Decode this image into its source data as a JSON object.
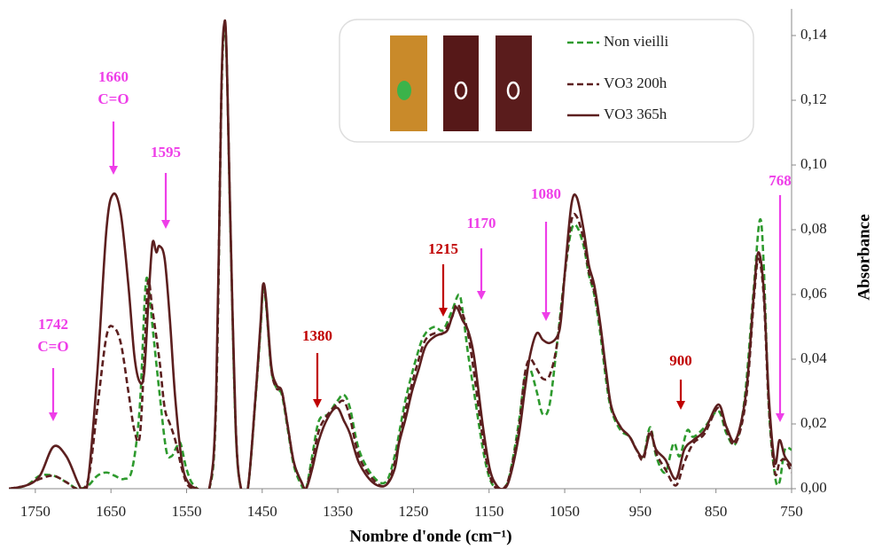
{
  "chart_data": {
    "type": "line",
    "xlabel": "Nombre d'onde (cm⁻¹)",
    "ylabel": "Absorbance",
    "xlim": [
      1785,
      750
    ],
    "xticks": [
      1750,
      1650,
      1550,
      1450,
      1350,
      1250,
      1150,
      1050,
      950,
      850,
      750
    ],
    "ylim": [
      0,
      0.147
    ],
    "yticks": [
      {
        "value": 0,
        "label": "0,00"
      },
      {
        "value": 0.02,
        "label": "0,02"
      },
      {
        "value": 0.04,
        "label": "0,04"
      },
      {
        "value": 0.06,
        "label": "0,06"
      },
      {
        "value": 0.08,
        "label": "0,08"
      },
      {
        "value": 0.1,
        "label": "0,10"
      },
      {
        "value": 0.12,
        "label": "0,12"
      },
      {
        "value": 0.14,
        "label": "0,14"
      }
    ],
    "series": [
      {
        "name": "Non vieilli",
        "color": "#2e9a2e",
        "style": "dashed",
        "x": [
          1785,
          1762,
          1744,
          1726,
          1709,
          1694,
          1680,
          1668,
          1656,
          1645,
          1633,
          1622,
          1612,
          1605,
          1601,
          1595,
          1586,
          1577,
          1570,
          1563,
          1558,
          1550,
          1540,
          1520,
          1511,
          1504,
          1500,
          1497,
          1492,
          1485,
          1478,
          1469,
          1459,
          1452,
          1449,
          1445,
          1438,
          1431,
          1424,
          1416,
          1408,
          1398,
          1392,
          1384,
          1375,
          1363,
          1351,
          1342,
          1334,
          1322,
          1304,
          1287,
          1275,
          1260,
          1243,
          1234,
          1222,
          1211,
          1199,
          1190,
          1185,
          1178,
          1170,
          1158,
          1149,
          1140,
          1131,
          1123,
          1111,
          1103,
          1096,
          1087,
          1079,
          1070,
          1060,
          1049,
          1041,
          1034,
          1025,
          1018,
          1011,
          1003,
          995,
          988,
          976,
          964,
          955,
          946,
          937,
          929,
          917,
          906,
          898,
          888,
          880,
          865,
          847,
          836,
          824,
          812,
          800,
          792,
          787,
          780,
          772,
          766,
          759,
          750
        ],
        "values": [
          0,
          0.001,
          0.004,
          0.004,
          0.002,
          0,
          0.001,
          0.004,
          0.005,
          0.004,
          0.003,
          0.006,
          0.025,
          0.06,
          0.064,
          0.05,
          0.03,
          0.012,
          0.01,
          0.013,
          0.014,
          0.006,
          0.001,
          0,
          0.026,
          0.12,
          0.142,
          0.132,
          0.08,
          0.018,
          0,
          0,
          0.027,
          0.05,
          0.061,
          0.057,
          0.037,
          0.031,
          0.029,
          0.018,
          0.007,
          0.001,
          0,
          0.01,
          0.021,
          0.023,
          0.027,
          0.029,
          0.025,
          0.012,
          0.004,
          0.002,
          0.01,
          0.028,
          0.043,
          0.048,
          0.05,
          0.049,
          0.055,
          0.06,
          0.055,
          0.042,
          0.03,
          0.012,
          0.003,
          0,
          0,
          0.004,
          0.02,
          0.034,
          0.037,
          0.03,
          0.023,
          0.026,
          0.045,
          0.068,
          0.08,
          0.081,
          0.075,
          0.066,
          0.06,
          0.048,
          0.033,
          0.024,
          0.018,
          0.016,
          0.012,
          0.01,
          0.019,
          0.01,
          0.005,
          0.014,
          0.01,
          0.018,
          0.016,
          0.019,
          0.024,
          0.017,
          0.014,
          0.028,
          0.062,
          0.083,
          0.07,
          0.025,
          0.004,
          0.002,
          0.012,
          0.012
        ]
      },
      {
        "name": "VO3 200h",
        "color": "#5c1f1f",
        "style": "dashed",
        "x": [
          1785,
          1762,
          1744,
          1726,
          1709,
          1694,
          1680,
          1668,
          1656,
          1647,
          1637,
          1627,
          1619,
          1612,
          1606,
          1601,
          1595,
          1586,
          1579,
          1572,
          1565,
          1556,
          1548,
          1536,
          1520,
          1511,
          1504,
          1500,
          1497,
          1492,
          1485,
          1478,
          1469,
          1459,
          1452,
          1449,
          1445,
          1438,
          1431,
          1424,
          1416,
          1408,
          1398,
          1392,
          1384,
          1375,
          1363,
          1351,
          1342,
          1334,
          1322,
          1304,
          1287,
          1275,
          1260,
          1243,
          1234,
          1222,
          1211,
          1199,
          1193,
          1185,
          1178,
          1170,
          1158,
          1149,
          1140,
          1131,
          1123,
          1111,
          1103,
          1096,
          1087,
          1079,
          1070,
          1060,
          1049,
          1041,
          1034,
          1025,
          1018,
          1011,
          1003,
          995,
          988,
          976,
          964,
          955,
          946,
          937,
          929,
          917,
          903,
          892,
          880,
          865,
          847,
          836,
          824,
          810,
          800,
          794,
          787,
          780,
          772,
          766,
          759,
          750
        ],
        "values": [
          0,
          0.001,
          0.003,
          0.004,
          0.002,
          0,
          0.003,
          0.025,
          0.047,
          0.05,
          0.045,
          0.03,
          0.018,
          0.016,
          0.04,
          0.064,
          0.055,
          0.04,
          0.025,
          0.02,
          0.015,
          0.006,
          0.001,
          0,
          0,
          0.027,
          0.122,
          0.143,
          0.133,
          0.081,
          0.019,
          0,
          0,
          0.028,
          0.051,
          0.062,
          0.058,
          0.037,
          0.031,
          0.03,
          0.019,
          0.008,
          0.002,
          0,
          0.008,
          0.018,
          0.023,
          0.026,
          0.027,
          0.022,
          0.01,
          0.003,
          0.001,
          0.008,
          0.025,
          0.04,
          0.046,
          0.048,
          0.048,
          0.053,
          0.057,
          0.054,
          0.048,
          0.036,
          0.015,
          0.004,
          0,
          0,
          0.004,
          0.018,
          0.035,
          0.04,
          0.037,
          0.034,
          0.035,
          0.045,
          0.068,
          0.083,
          0.084,
          0.077,
          0.067,
          0.061,
          0.05,
          0.035,
          0.025,
          0.019,
          0.016,
          0.012,
          0.009,
          0.018,
          0.011,
          0.006,
          0.001,
          0.008,
          0.014,
          0.017,
          0.025,
          0.018,
          0.014,
          0.028,
          0.058,
          0.071,
          0.06,
          0.025,
          0.005,
          0.008,
          0.009,
          0.005
        ]
      },
      {
        "name": "VO3 365h",
        "color": "#5c1f1f",
        "style": "solid",
        "x": [
          1785,
          1762,
          1744,
          1726,
          1709,
          1694,
          1688,
          1680,
          1668,
          1656,
          1647,
          1637,
          1627,
          1619,
          1612,
          1606,
          1600,
          1595,
          1590,
          1586,
          1579,
          1572,
          1565,
          1556,
          1548,
          1536,
          1520,
          1511,
          1504,
          1500,
          1497,
          1492,
          1485,
          1478,
          1469,
          1459,
          1452,
          1449,
          1445,
          1438,
          1431,
          1424,
          1416,
          1408,
          1398,
          1392,
          1384,
          1375,
          1363,
          1351,
          1342,
          1334,
          1322,
          1304,
          1287,
          1275,
          1269,
          1260,
          1252,
          1243,
          1234,
          1222,
          1211,
          1205,
          1199,
          1193,
          1185,
          1178,
          1170,
          1158,
          1149,
          1140,
          1131,
          1123,
          1111,
          1103,
          1096,
          1087,
          1079,
          1070,
          1060,
          1055,
          1049,
          1041,
          1034,
          1025,
          1018,
          1011,
          1003,
          995,
          988,
          976,
          964,
          955,
          946,
          937,
          929,
          917,
          903,
          892,
          880,
          865,
          847,
          836,
          824,
          810,
          800,
          794,
          787,
          780,
          772,
          766,
          759,
          750
        ],
        "values": [
          0,
          0.001,
          0.004,
          0.013,
          0.01,
          0.002,
          0,
          0.003,
          0.036,
          0.08,
          0.091,
          0.085,
          0.063,
          0.041,
          0.033,
          0.036,
          0.06,
          0.076,
          0.073,
          0.075,
          0.071,
          0.052,
          0.028,
          0.008,
          0.002,
          0,
          0,
          0.028,
          0.123,
          0.144,
          0.134,
          0.082,
          0.019,
          0,
          0,
          0.028,
          0.052,
          0.063,
          0.059,
          0.038,
          0.032,
          0.03,
          0.019,
          0.008,
          0.002,
          0,
          0.006,
          0.015,
          0.022,
          0.025,
          0.021,
          0.017,
          0.008,
          0.002,
          0.001,
          0.006,
          0.014,
          0.022,
          0.03,
          0.037,
          0.044,
          0.047,
          0.048,
          0.049,
          0.053,
          0.056,
          0.052,
          0.049,
          0.041,
          0.019,
          0.006,
          0.001,
          0,
          0.003,
          0.016,
          0.03,
          0.041,
          0.048,
          0.046,
          0.045,
          0.047,
          0.052,
          0.069,
          0.088,
          0.09,
          0.08,
          0.069,
          0.063,
          0.051,
          0.036,
          0.025,
          0.019,
          0.016,
          0.012,
          0.01,
          0.017,
          0.012,
          0.009,
          0.003,
          0.012,
          0.015,
          0.018,
          0.026,
          0.019,
          0.015,
          0.03,
          0.06,
          0.073,
          0.062,
          0.028,
          0.008,
          0.015,
          0.01,
          0.007
        ]
      }
    ],
    "annotations": [
      {
        "x": 1742,
        "note": "C=O",
        "color": "#ee3ee8"
      },
      {
        "x": 1660,
        "note": "C=O",
        "color": "#ee3ee8"
      },
      {
        "x": 1595,
        "color": "#ee3ee8"
      },
      {
        "x": 1380,
        "color": "#c00000"
      },
      {
        "x": 1215,
        "color": "#c00000"
      },
      {
        "x": 1170,
        "color": "#ee3ee8"
      },
      {
        "x": 1080,
        "color": "#ee3ee8"
      },
      {
        "x": 900,
        "color": "#c00000"
      },
      {
        "x": 768,
        "color": "#ee3ee8"
      }
    ]
  }
}
